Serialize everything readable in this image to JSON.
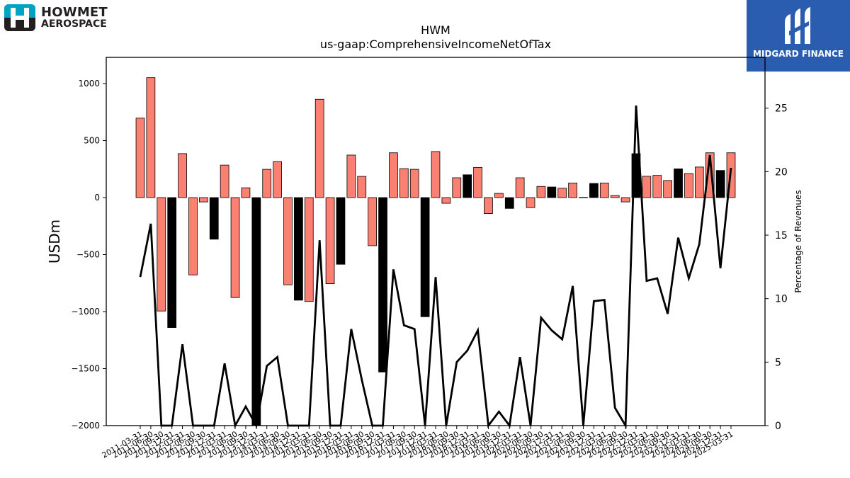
{
  "logos": {
    "left_line1": "HOWMET",
    "left_line2": "AEROSPACE",
    "right_text": "MIDGARD FINANCE"
  },
  "colors": {
    "positive_bar": "#fa8072",
    "negative_bar": "#000000",
    "line": "#000000",
    "logo_left_accent": "#00a3c4",
    "logo_right_bg": "#2a5db0"
  },
  "chart_data": {
    "type": "bar",
    "title": "HWM",
    "subtitle": "us-gaap:ComprehensiveIncomeNetOfTax",
    "ylabel": "USDm",
    "y2label": "Percentage of Revenues",
    "ylim": [
      -2000,
      1230
    ],
    "y2lim": [
      0,
      29
    ],
    "yticks": [
      -2000,
      -1500,
      -1000,
      -500,
      0,
      500,
      1000
    ],
    "y2ticks": [
      0,
      5,
      10,
      15,
      20,
      25
    ],
    "grid": false,
    "x": [
      "2011-03-31",
      "2011-06-30",
      "2011-09-30",
      "2011-12-31",
      "2012-03-31",
      "2012-06-30",
      "2012-09-30",
      "2012-12-31",
      "2013-03-31",
      "2013-06-30",
      "2013-09-30",
      "2013-12-31",
      "2014-03-31",
      "2014-06-30",
      "2014-09-30",
      "2014-12-31",
      "2015-03-31",
      "2015-06-30",
      "2015-09-30",
      "2015-12-31",
      "2016-03-31",
      "2016-06-30",
      "2016-09-30",
      "2016-12-31",
      "2017-03-31",
      "2017-06-30",
      "2017-09-30",
      "2017-12-31",
      "2018-03-31",
      "2018-06-30",
      "2018-09-30",
      "2018-12-31",
      "2019-03-31",
      "2019-06-30",
      "2019-09-30",
      "2019-12-31",
      "2020-03-31",
      "2020-06-30",
      "2020-09-30",
      "2020-12-31",
      "2021-03-31",
      "2021-06-30",
      "2021-09-30",
      "2021-12-31",
      "2022-03-31",
      "2022-06-30",
      "2022-09-30",
      "2022-12-31",
      "2023-03-31",
      "2023-06-30",
      "2023-09-30",
      "2023-12-31",
      "2024-03-31",
      "2024-06-30",
      "2024-09-30",
      "2024-12-31",
      "2025-03-31"
    ],
    "xtick_labels": [
      "2011-03-31",
      "2011-06-30",
      "2011-09-30",
      "2011-12-31",
      "2012-03-31",
      "2012-06-30",
      "2012-09-30",
      "2012-12-31",
      "2013-03-31",
      "2013-06-30",
      "2013-09-30",
      "2013-12-31",
      "2014-03-31",
      "2014-06-30",
      "2014-09-30",
      "2014-12-31",
      "2015-03-31",
      "2015-06-30",
      "2015-09-30",
      "2015-12-31",
      "2016-03-31",
      "2016-06-30",
      "2016-09-30",
      "2016-12-31",
      "2017-03-31",
      "2017-06-30",
      "2017-09-30",
      "2017-12-31",
      "2018-03-31",
      "2018-06-30",
      "2018-09-30",
      "2018-12-31",
      "2019-03-31",
      "2019-06-30",
      "2019-09-30",
      "2019-12-31",
      "2020-03-31",
      "2020-06-30",
      "2020-09-30",
      "2020-12-31",
      "2021-03-31",
      "2021-06-30",
      "2021-09-30",
      "2021-12-31",
      "2022-03-31",
      "2022-06-30",
      "2022-09-30",
      "2022-12-31",
      "2023-03-31",
      "2023-06-30",
      "2023-09-30",
      "2023-12-31",
      "2024-03-31",
      "2024-06-30",
      "2024-09-30",
      "2024-12-31",
      "2025-03-31"
    ],
    "series": [
      {
        "values": [
          697,
          1052,
          -995,
          -1140,
          386,
          -678,
          -38,
          -365,
          285,
          -877,
          86,
          -2000,
          248,
          316,
          -765,
          -900,
          -911,
          862,
          -755,
          -585,
          373,
          186,
          -422,
          -1530,
          393,
          254,
          248,
          -1045,
          404,
          -50,
          174,
          200,
          265,
          -140,
          37,
          -95,
          174,
          -88,
          98,
          93,
          82,
          128,
          2,
          124,
          128,
          18,
          -38,
          385,
          187,
          195,
          150,
          252,
          211,
          268,
          393,
          238,
          393
        ],
        "bar_colors": [
          "pos",
          "pos",
          "pos",
          "neg",
          "pos",
          "pos",
          "pos",
          "neg",
          "pos",
          "pos",
          "pos",
          "neg",
          "pos",
          "pos",
          "pos",
          "neg",
          "pos",
          "pos",
          "pos",
          "neg",
          "pos",
          "pos",
          "pos",
          "neg",
          "pos",
          "pos",
          "pos",
          "neg",
          "pos",
          "pos",
          "pos",
          "neg",
          "pos",
          "pos",
          "pos",
          "neg",
          "pos",
          "pos",
          "pos",
          "neg",
          "pos",
          "pos",
          "pos",
          "neg",
          "pos",
          "pos",
          "pos",
          "neg",
          "pos",
          "pos",
          "pos",
          "neg",
          "pos",
          "pos",
          "pos",
          "neg",
          "pos"
        ]
      },
      {
        "axis": "right",
        "type": "line",
        "values": [
          11.7,
          15.9,
          0,
          0,
          6.4,
          0,
          0,
          0,
          4.9,
          0,
          1.5,
          0,
          4.7,
          5.4,
          0,
          0,
          0,
          14.6,
          0,
          0,
          7.6,
          3.6,
          0,
          0,
          12.3,
          7.9,
          7.6,
          0,
          11.7,
          0,
          5.0,
          5.9,
          7.5,
          0,
          1.1,
          0,
          5.4,
          0,
          8.5,
          7.5,
          6.8,
          11.0,
          0,
          9.8,
          9.9,
          1.4,
          0,
          25.2,
          11.4,
          11.6,
          8.8,
          14.8,
          11.6,
          14.3,
          21.3,
          12.4,
          20.3
        ]
      }
    ]
  }
}
